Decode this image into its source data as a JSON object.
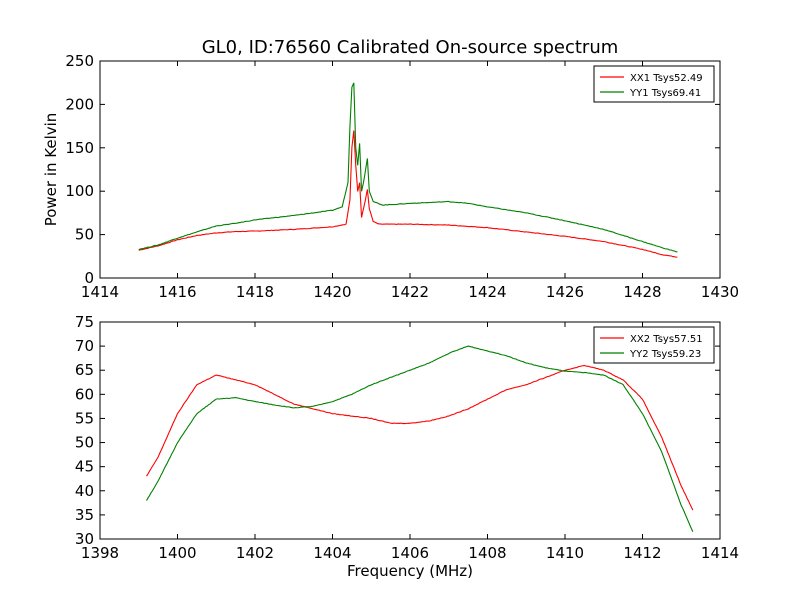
{
  "title": "GL0, ID:76560 Calibrated On-source spectrum",
  "colors": {
    "red": "#ff0000",
    "green": "#008000"
  },
  "chart_data": [
    {
      "type": "line",
      "ylabel": "Power in Kelvin",
      "xlabel": "",
      "xlim": [
        1414,
        1430
      ],
      "ylim": [
        0,
        250
      ],
      "xticks": [
        "1414",
        "1416",
        "1418",
        "1420",
        "1422",
        "1424",
        "1426",
        "1428",
        "1430"
      ],
      "yticks": [
        "0",
        "50",
        "100",
        "150",
        "200",
        "250"
      ],
      "grid": false,
      "legend_position": "top-right",
      "series": [
        {
          "name": "XX1 Tsys52.49",
          "color": "#ff0000",
          "points": [
            [
              1415,
              32
            ],
            [
              1415.5,
              37
            ],
            [
              1416,
              44
            ],
            [
              1416.5,
              49
            ],
            [
              1417,
              52
            ],
            [
              1417.5,
              53.5
            ],
            [
              1418,
              54
            ],
            [
              1419,
              56
            ],
            [
              1420,
              59
            ],
            [
              1420.35,
              62
            ],
            [
              1420.45,
              90
            ],
            [
              1420.5,
              150
            ],
            [
              1420.55,
              170
            ],
            [
              1420.6,
              130
            ],
            [
              1420.65,
              100
            ],
            [
              1420.7,
              110
            ],
            [
              1420.75,
              70
            ],
            [
              1420.8,
              80
            ],
            [
              1420.85,
              90
            ],
            [
              1420.9,
              102
            ],
            [
              1420.95,
              80
            ],
            [
              1421.05,
              65
            ],
            [
              1421.2,
              62
            ],
            [
              1422,
              62
            ],
            [
              1423,
              61
            ],
            [
              1424,
              58
            ],
            [
              1425,
              53
            ],
            [
              1426,
              48
            ],
            [
              1427,
              42
            ],
            [
              1428,
              33
            ],
            [
              1428.5,
              27
            ],
            [
              1428.9,
              24
            ]
          ]
        },
        {
          "name": "YY1 Tsys69.41",
          "color": "#008000",
          "points": [
            [
              1415,
              33
            ],
            [
              1415.5,
              38
            ],
            [
              1416,
              46
            ],
            [
              1416.5,
              53
            ],
            [
              1417,
              60
            ],
            [
              1417.5,
              63
            ],
            [
              1418,
              67
            ],
            [
              1419,
              72
            ],
            [
              1420,
              78
            ],
            [
              1420.25,
              82
            ],
            [
              1420.4,
              110
            ],
            [
              1420.45,
              175
            ],
            [
              1420.5,
              220
            ],
            [
              1420.55,
              225
            ],
            [
              1420.6,
              150
            ],
            [
              1420.65,
              130
            ],
            [
              1420.7,
              155
            ],
            [
              1420.75,
              100
            ],
            [
              1420.8,
              110
            ],
            [
              1420.9,
              138
            ],
            [
              1420.95,
              100
            ],
            [
              1421.05,
              88
            ],
            [
              1421.3,
              84
            ],
            [
              1422,
              86
            ],
            [
              1423,
              88
            ],
            [
              1423.5,
              86
            ],
            [
              1424,
              82
            ],
            [
              1425,
              75
            ],
            [
              1426,
              66
            ],
            [
              1427,
              56
            ],
            [
              1428,
              42
            ],
            [
              1428.5,
              35
            ],
            [
              1428.9,
              30
            ]
          ]
        }
      ]
    },
    {
      "type": "line",
      "ylabel": "",
      "xlabel": "Frequency (MHz)",
      "xlim": [
        1398,
        1414
      ],
      "ylim": [
        30,
        75
      ],
      "xticks": [
        "1398",
        "1400",
        "1402",
        "1404",
        "1406",
        "1408",
        "1410",
        "1412",
        "1414"
      ],
      "yticks": [
        "30",
        "35",
        "40",
        "45",
        "50",
        "55",
        "60",
        "65",
        "70",
        "75"
      ],
      "grid": false,
      "legend_position": "top-right",
      "series": [
        {
          "name": "XX2 Tsys57.51",
          "color": "#ff0000",
          "points": [
            [
              1399.2,
              43
            ],
            [
              1399.5,
              47
            ],
            [
              1400,
              56
            ],
            [
              1400.5,
              62
            ],
            [
              1401,
              64
            ],
            [
              1401.5,
              63
            ],
            [
              1402,
              62
            ],
            [
              1402.5,
              60
            ],
            [
              1403,
              58
            ],
            [
              1404,
              56
            ],
            [
              1405,
              55
            ],
            [
              1405.5,
              54
            ],
            [
              1406,
              54
            ],
            [
              1406.5,
              54.5
            ],
            [
              1407,
              55.5
            ],
            [
              1407.5,
              57
            ],
            [
              1408,
              59
            ],
            [
              1408.5,
              61
            ],
            [
              1409,
              62
            ],
            [
              1409.5,
              63.5
            ],
            [
              1410,
              65
            ],
            [
              1410.5,
              66
            ],
            [
              1411,
              65
            ],
            [
              1411.5,
              63
            ],
            [
              1412,
              59
            ],
            [
              1412.5,
              51
            ],
            [
              1413,
              41
            ],
            [
              1413.3,
              36
            ]
          ]
        },
        {
          "name": "YY2 Tsys59.23",
          "color": "#008000",
          "points": [
            [
              1399.2,
              38
            ],
            [
              1399.5,
              42
            ],
            [
              1400,
              50
            ],
            [
              1400.5,
              56
            ],
            [
              1401,
              59
            ],
            [
              1401.5,
              59.3
            ],
            [
              1402,
              58.5
            ],
            [
              1402.5,
              57.8
            ],
            [
              1403,
              57.2
            ],
            [
              1403.5,
              57.5
            ],
            [
              1404,
              58.5
            ],
            [
              1404.5,
              60
            ],
            [
              1405,
              62
            ],
            [
              1405.5,
              63.5
            ],
            [
              1406,
              65
            ],
            [
              1406.5,
              66.5
            ],
            [
              1407,
              68.5
            ],
            [
              1407.5,
              70
            ],
            [
              1408,
              69
            ],
            [
              1408.5,
              68
            ],
            [
              1409,
              66.5
            ],
            [
              1409.5,
              65.5
            ],
            [
              1410,
              64.8
            ],
            [
              1410.5,
              64.5
            ],
            [
              1411,
              64
            ],
            [
              1411.5,
              62
            ],
            [
              1412,
              56
            ],
            [
              1412.5,
              48
            ],
            [
              1413,
              37
            ],
            [
              1413.3,
              31.5
            ]
          ]
        }
      ]
    }
  ]
}
